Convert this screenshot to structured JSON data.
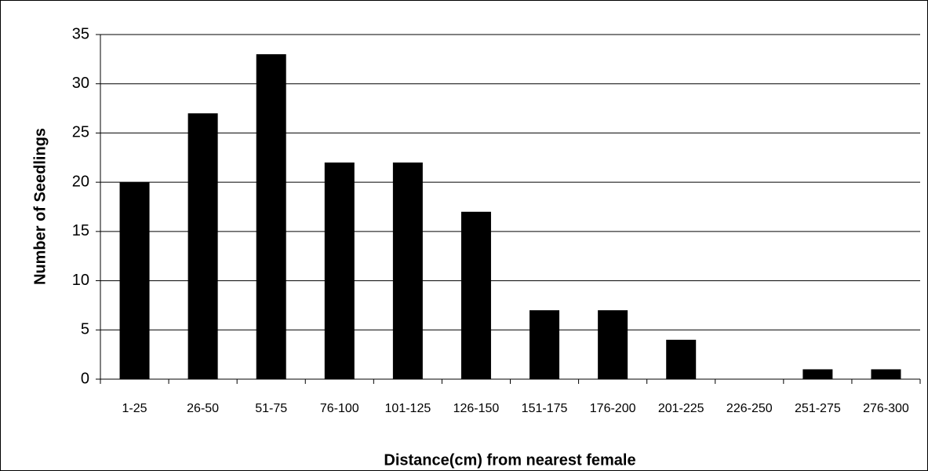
{
  "chart_data": {
    "type": "bar",
    "categories": [
      "1-25",
      "26-50",
      "51-75",
      "76-100",
      "101-125",
      "126-150",
      "151-175",
      "176-200",
      "201-225",
      "226-250",
      "251-275",
      "276-300"
    ],
    "values": [
      20,
      27,
      33,
      22,
      22,
      17,
      7,
      7,
      4,
      0,
      1,
      1
    ],
    "color": "#000000",
    "y_label": "Number of Seedlings",
    "x_label": "Distance(cm) from nearest female",
    "ylim": [
      0,
      35
    ],
    "yticks": [
      0,
      5,
      10,
      15,
      20,
      25,
      30,
      35
    ],
    "grid": true
  }
}
